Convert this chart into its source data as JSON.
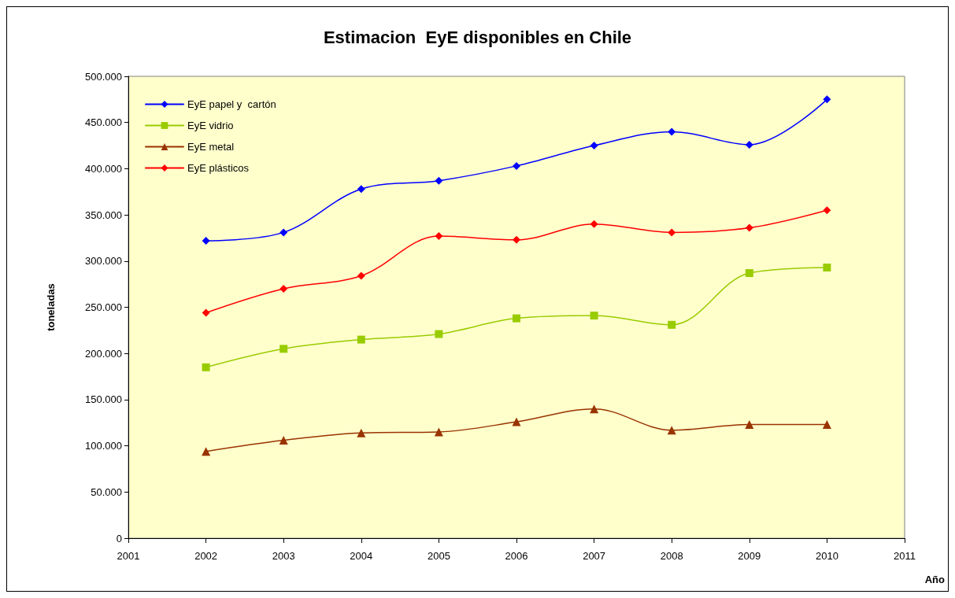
{
  "chart_data": {
    "type": "line",
    "title": "Estimacion  EyE disponibles en Chile",
    "xlabel": "Año",
    "ylabel": "toneladas",
    "x": [
      2002,
      2003,
      2004,
      2005,
      2006,
      2007,
      2008,
      2009,
      2010
    ],
    "series": [
      {
        "name": "EyE papel y  cartón",
        "color": "#0000ff",
        "marker": "diamond",
        "values": [
          322000,
          331000,
          378000,
          387000,
          403000,
          425000,
          440000,
          426000,
          475000
        ]
      },
      {
        "name": "EyE vidrio",
        "color": "#99cc00",
        "marker": "square",
        "values": [
          185000,
          205000,
          215000,
          221000,
          238000,
          241000,
          231000,
          287000,
          293000
        ]
      },
      {
        "name": "EyE metal",
        "color": "#993300",
        "marker": "triangle",
        "values": [
          94000,
          106000,
          114000,
          115000,
          126000,
          140000,
          117000,
          123000,
          123000
        ]
      },
      {
        "name": "EyE plásticos",
        "color": "#ff0000",
        "marker": "diamond",
        "values": [
          244000,
          270000,
          284000,
          327000,
          323000,
          340000,
          331000,
          336000,
          355000
        ]
      }
    ],
    "xlim": [
      2001,
      2011
    ],
    "xticks": [
      2001,
      2002,
      2003,
      2004,
      2005,
      2006,
      2007,
      2008,
      2009,
      2010,
      2011
    ],
    "ylim": [
      0,
      500000
    ],
    "yticks": [
      0,
      {
        "value": 50000,
        "label": "50.000"
      },
      {
        "value": 100000,
        "label": "100.000"
      },
      {
        "value": 150000,
        "label": "150.000"
      },
      {
        "value": 200000,
        "label": "200.000"
      },
      {
        "value": 250000,
        "label": "250.000"
      },
      {
        "value": 300000,
        "label": "300.000"
      },
      {
        "value": 350000,
        "label": "350.000"
      },
      {
        "value": 400000,
        "label": "400.000"
      },
      {
        "value": 450000,
        "label": "450.000"
      },
      {
        "value": 500000,
        "label": "500.000"
      }
    ],
    "legend": "top left",
    "grid": false,
    "line_style": "solid"
  }
}
